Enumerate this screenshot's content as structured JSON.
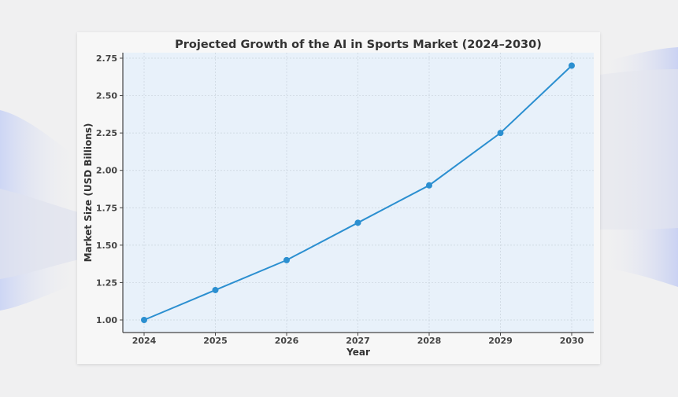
{
  "chart_data": {
    "type": "line",
    "title": "Projected Growth of the AI in Sports Market (2024–2030)",
    "xlabel": "Year",
    "ylabel": "Market Size (USD Billions)",
    "categories": [
      "2024",
      "2025",
      "2026",
      "2027",
      "2028",
      "2029",
      "2030"
    ],
    "series": [
      {
        "values": [
          1.0,
          1.2,
          1.4,
          1.65,
          1.9,
          2.25,
          2.7
        ]
      }
    ],
    "yticks": [
      "1.00",
      "1.25",
      "1.50",
      "1.75",
      "2.00",
      "2.25",
      "2.50",
      "2.75"
    ],
    "ylim": [
      0.915,
      2.785
    ],
    "grid": true,
    "line_color": "#2b8fd0",
    "plot_background": "#e8f1fa"
  }
}
